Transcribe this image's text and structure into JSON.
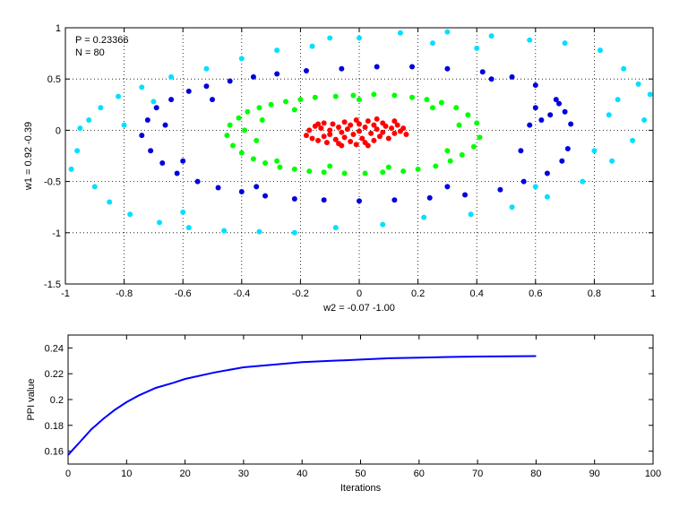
{
  "chart_data": [
    {
      "type": "scatter",
      "title": "",
      "xlabel": "w2 = -0.07  -1.00",
      "ylabel": "w1 = 0.92  -0.39",
      "xlim": [
        -1,
        1
      ],
      "ylim": [
        -1.5,
        1
      ],
      "xticks": [
        "-1",
        "-0.8",
        "-0.6",
        "-0.4",
        "-0.2",
        "0",
        "0.2",
        "0.4",
        "0.6",
        "0.8",
        "1"
      ],
      "yticks": [
        "-1.5",
        "-1",
        "-0.5",
        "0",
        "0.5",
        "1"
      ],
      "grid": true,
      "annotations": [
        "P = 0.23366",
        "N = 80"
      ],
      "series": [
        {
          "color": "#ff0000",
          "shape": "ellipse",
          "center": [
            0.0,
            -0.03
          ],
          "radius": [
            0.12,
            0.06
          ],
          "points": [
            [
              -0.18,
              -0.05
            ],
            [
              -0.17,
              0.0
            ],
            [
              -0.16,
              -0.08
            ],
            [
              -0.15,
              0.04
            ],
            [
              -0.14,
              -0.1
            ],
            [
              -0.13,
              0.02
            ],
            [
              -0.12,
              -0.06
            ],
            [
              -0.12,
              0.07
            ],
            [
              -0.11,
              -0.12
            ],
            [
              -0.1,
              0.0
            ],
            [
              -0.1,
              -0.04
            ],
            [
              -0.09,
              0.06
            ],
            [
              -0.08,
              -0.09
            ],
            [
              -0.07,
              0.03
            ],
            [
              -0.07,
              -0.13
            ],
            [
              -0.06,
              -0.02
            ],
            [
              -0.05,
              0.08
            ],
            [
              -0.05,
              -0.07
            ],
            [
              -0.04,
              0.01
            ],
            [
              -0.03,
              -0.11
            ],
            [
              -0.03,
              0.05
            ],
            [
              -0.02,
              -0.04
            ],
            [
              -0.01,
              0.1
            ],
            [
              -0.01,
              -0.14
            ],
            [
              0.0,
              -0.01
            ],
            [
              0.0,
              0.06
            ],
            [
              0.01,
              -0.08
            ],
            [
              0.02,
              0.03
            ],
            [
              0.02,
              -0.12
            ],
            [
              0.03,
              0.09
            ],
            [
              0.04,
              -0.03
            ],
            [
              0.05,
              0.05
            ],
            [
              0.05,
              -0.1
            ],
            [
              0.06,
              0.01
            ],
            [
              0.07,
              -0.06
            ],
            [
              0.08,
              0.07
            ],
            [
              0.08,
              -0.02
            ],
            [
              0.09,
              0.04
            ],
            [
              0.1,
              -0.08
            ],
            [
              0.11,
              0.02
            ],
            [
              0.12,
              -0.03
            ],
            [
              0.13,
              0.05
            ],
            [
              0.14,
              -0.01
            ],
            [
              0.15,
              0.02
            ],
            [
              0.16,
              -0.04
            ],
            [
              0.12,
              0.09
            ],
            [
              -0.14,
              0.06
            ],
            [
              0.06,
              0.11
            ],
            [
              -0.06,
              -0.15
            ],
            [
              0.03,
              -0.15
            ]
          ]
        },
        {
          "color": "#00ff00",
          "shape": "ellipse",
          "center": [
            0.0,
            -0.05
          ],
          "radius": [
            0.37,
            0.28
          ],
          "points": [
            [
              -0.45,
              -0.05
            ],
            [
              -0.44,
              0.05
            ],
            [
              -0.43,
              -0.15
            ],
            [
              -0.41,
              0.12
            ],
            [
              -0.4,
              -0.22
            ],
            [
              -0.38,
              0.18
            ],
            [
              -0.36,
              -0.28
            ],
            [
              -0.34,
              0.22
            ],
            [
              -0.32,
              -0.32
            ],
            [
              -0.3,
              0.25
            ],
            [
              -0.27,
              -0.36
            ],
            [
              -0.25,
              0.28
            ],
            [
              -0.22,
              -0.38
            ],
            [
              -0.2,
              0.3
            ],
            [
              -0.17,
              -0.4
            ],
            [
              -0.15,
              0.32
            ],
            [
              -0.12,
              -0.41
            ],
            [
              -0.08,
              0.33
            ],
            [
              -0.05,
              -0.42
            ],
            [
              -0.02,
              0.34
            ],
            [
              0.02,
              -0.42
            ],
            [
              0.05,
              0.35
            ],
            [
              0.08,
              -0.41
            ],
            [
              0.12,
              0.34
            ],
            [
              0.15,
              -0.4
            ],
            [
              0.18,
              0.32
            ],
            [
              0.2,
              -0.38
            ],
            [
              0.23,
              0.3
            ],
            [
              0.26,
              -0.35
            ],
            [
              0.28,
              0.27
            ],
            [
              0.31,
              -0.3
            ],
            [
              0.33,
              0.22
            ],
            [
              0.35,
              -0.24
            ],
            [
              0.37,
              0.15
            ],
            [
              0.39,
              -0.16
            ],
            [
              0.4,
              0.07
            ],
            [
              0.41,
              -0.07
            ],
            [
              -0.39,
              0.0
            ],
            [
              -0.35,
              -0.1
            ],
            [
              -0.33,
              0.1
            ],
            [
              -0.28,
              -0.3
            ],
            [
              0.3,
              -0.2
            ],
            [
              0.34,
              0.05
            ],
            [
              0.25,
              0.22
            ],
            [
              -0.22,
              0.2
            ],
            [
              0.1,
              -0.36
            ],
            [
              -0.1,
              -0.35
            ],
            [
              0.0,
              0.3
            ]
          ]
        },
        {
          "color": "#0000dd",
          "shape": "ellipse",
          "center": [
            0.0,
            -0.05
          ],
          "radius": [
            0.72,
            0.62
          ],
          "points": [
            [
              -0.74,
              -0.05
            ],
            [
              -0.72,
              0.1
            ],
            [
              -0.71,
              -0.2
            ],
            [
              -0.69,
              0.22
            ],
            [
              -0.67,
              -0.32
            ],
            [
              -0.64,
              0.3
            ],
            [
              -0.62,
              -0.42
            ],
            [
              -0.58,
              0.38
            ],
            [
              -0.55,
              -0.5
            ],
            [
              -0.52,
              0.43
            ],
            [
              -0.48,
              -0.56
            ],
            [
              -0.44,
              0.48
            ],
            [
              -0.4,
              -0.6
            ],
            [
              -0.36,
              0.52
            ],
            [
              -0.32,
              -0.64
            ],
            [
              -0.28,
              0.55
            ],
            [
              -0.22,
              -0.67
            ],
            [
              -0.18,
              0.58
            ],
            [
              -0.12,
              -0.68
            ],
            [
              -0.06,
              0.6
            ],
            [
              0.0,
              -0.69
            ],
            [
              0.06,
              0.62
            ],
            [
              0.12,
              -0.68
            ],
            [
              0.18,
              0.62
            ],
            [
              0.24,
              -0.66
            ],
            [
              0.3,
              0.6
            ],
            [
              0.36,
              -0.63
            ],
            [
              0.42,
              0.57
            ],
            [
              0.48,
              -0.58
            ],
            [
              0.52,
              0.52
            ],
            [
              0.56,
              -0.5
            ],
            [
              0.6,
              0.44
            ],
            [
              0.64,
              -0.42
            ],
            [
              0.67,
              0.3
            ],
            [
              0.69,
              -0.3
            ],
            [
              0.7,
              0.18
            ],
            [
              0.71,
              -0.18
            ],
            [
              0.72,
              0.06
            ],
            [
              0.6,
              0.22
            ],
            [
              0.62,
              0.1
            ],
            [
              0.65,
              0.15
            ],
            [
              0.68,
              0.26
            ],
            [
              0.58,
              0.05
            ],
            [
              0.55,
              -0.2
            ],
            [
              -0.6,
              -0.3
            ],
            [
              -0.66,
              0.05
            ],
            [
              -0.5,
              0.3
            ],
            [
              -0.35,
              -0.55
            ],
            [
              0.3,
              -0.55
            ],
            [
              0.45,
              0.5
            ]
          ]
        },
        {
          "color": "#00e0ff",
          "shape": "ellipse",
          "center": [
            0.0,
            0.05
          ],
          "radius": [
            0.98,
            0.98
          ],
          "points": [
            [
              -0.98,
              -0.38
            ],
            [
              -0.96,
              -0.2
            ],
            [
              -0.95,
              0.02
            ],
            [
              -0.92,
              0.1
            ],
            [
              -0.9,
              -0.55
            ],
            [
              -0.88,
              0.22
            ],
            [
              -0.85,
              -0.7
            ],
            [
              -0.82,
              0.33
            ],
            [
              -0.78,
              -0.82
            ],
            [
              -0.74,
              0.42
            ],
            [
              -0.68,
              -0.9
            ],
            [
              -0.64,
              0.52
            ],
            [
              -0.58,
              -0.95
            ],
            [
              -0.52,
              0.6
            ],
            [
              -0.46,
              -0.98
            ],
            [
              -0.4,
              0.7
            ],
            [
              -0.34,
              -0.99
            ],
            [
              -0.28,
              0.78
            ],
            [
              -0.22,
              -1.0
            ],
            [
              -0.16,
              0.82
            ],
            [
              -0.08,
              -0.95
            ],
            [
              0.0,
              0.9
            ],
            [
              0.08,
              -0.92
            ],
            [
              0.14,
              0.95
            ],
            [
              0.22,
              -0.85
            ],
            [
              0.3,
              0.96
            ],
            [
              0.38,
              -0.82
            ],
            [
              0.45,
              0.92
            ],
            [
              0.52,
              -0.75
            ],
            [
              0.58,
              0.88
            ],
            [
              0.64,
              -0.65
            ],
            [
              0.7,
              0.85
            ],
            [
              0.76,
              -0.5
            ],
            [
              0.82,
              0.78
            ],
            [
              0.86,
              -0.3
            ],
            [
              0.9,
              0.6
            ],
            [
              0.93,
              -0.1
            ],
            [
              0.95,
              0.45
            ],
            [
              0.97,
              0.1
            ],
            [
              0.99,
              0.35
            ],
            [
              -0.7,
              0.28
            ],
            [
              -0.8,
              0.05
            ],
            [
              0.85,
              0.15
            ],
            [
              0.88,
              0.3
            ],
            [
              0.8,
              -0.2
            ],
            [
              0.6,
              -0.55
            ],
            [
              -0.6,
              -0.8
            ],
            [
              0.25,
              0.85
            ],
            [
              -0.1,
              0.9
            ],
            [
              0.4,
              0.8
            ]
          ]
        }
      ]
    },
    {
      "type": "line",
      "title": "",
      "xlabel": "Iterations",
      "ylabel": "PPI value",
      "xlim": [
        0,
        100
      ],
      "ylim": [
        0.15,
        0.25
      ],
      "xticks": [
        "0",
        "10",
        "20",
        "30",
        "40",
        "50",
        "60",
        "70",
        "80",
        "90",
        "100"
      ],
      "yticks": [
        "0.16",
        "0.18",
        "0.2",
        "0.22",
        "0.24"
      ],
      "grid": false,
      "series": [
        {
          "color": "#0000ff",
          "x": [
            0,
            1,
            2,
            3,
            4,
            5,
            6,
            8,
            10,
            12,
            15,
            18,
            20,
            25,
            30,
            35,
            40,
            45,
            50,
            55,
            60,
            65,
            70,
            75,
            80
          ],
          "y": [
            0.157,
            0.162,
            0.167,
            0.172,
            0.177,
            0.181,
            0.185,
            0.192,
            0.198,
            0.203,
            0.209,
            0.213,
            0.216,
            0.221,
            0.225,
            0.227,
            0.229,
            0.23,
            0.231,
            0.232,
            0.2325,
            0.233,
            0.2333,
            0.2335,
            0.2337
          ]
        }
      ]
    }
  ]
}
